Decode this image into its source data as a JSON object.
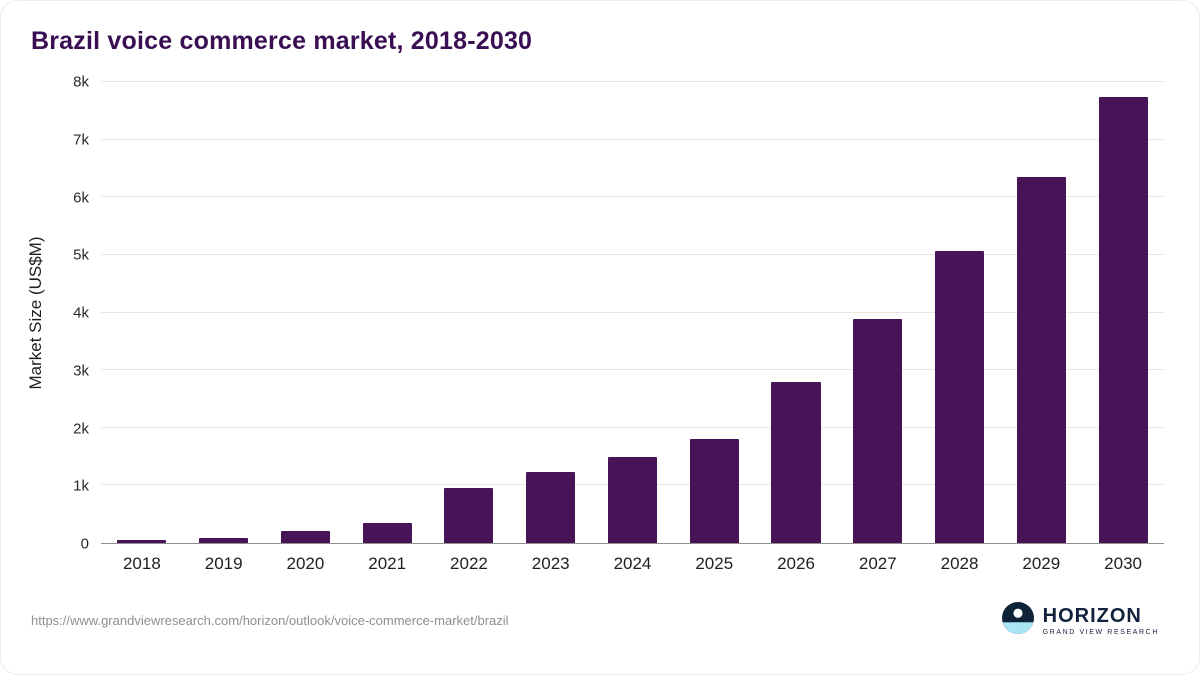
{
  "title": "Brazil voice commerce market, 2018-2030",
  "source_url": "https://www.grandviewresearch.com/horizon/outlook/voice-commerce-market/brazil",
  "logo": {
    "name": "HORIZON",
    "subtext": "GRAND VIEW RESEARCH"
  },
  "colors": {
    "bar": "#461457",
    "title": "#3a0e52",
    "grid": "#e7e7e7",
    "axis_line": "#8f8f8f",
    "axis_text": "#1f1f1f",
    "source_text": "#8f8f8f",
    "logo_navy": "#0e2238",
    "logo_water": "#a9e4f4"
  },
  "chart_data": {
    "type": "bar",
    "title": "Brazil voice commerce market, 2018-2030",
    "categories": [
      "2018",
      "2019",
      "2020",
      "2021",
      "2022",
      "2023",
      "2024",
      "2025",
      "2026",
      "2027",
      "2028",
      "2029",
      "2030"
    ],
    "values": [
      50,
      80,
      200,
      350,
      960,
      1230,
      1490,
      1800,
      2800,
      3890,
      5070,
      6360,
      7740
    ],
    "xlabel": "",
    "ylabel": "Market Size (US$M)",
    "ylim": [
      0,
      8000
    ],
    "ytick_step": 1000,
    "ytick_labels": [
      "0",
      "1k",
      "2k",
      "3k",
      "4k",
      "5k",
      "6k",
      "7k",
      "8k"
    ],
    "grid": true,
    "legend": "none"
  }
}
